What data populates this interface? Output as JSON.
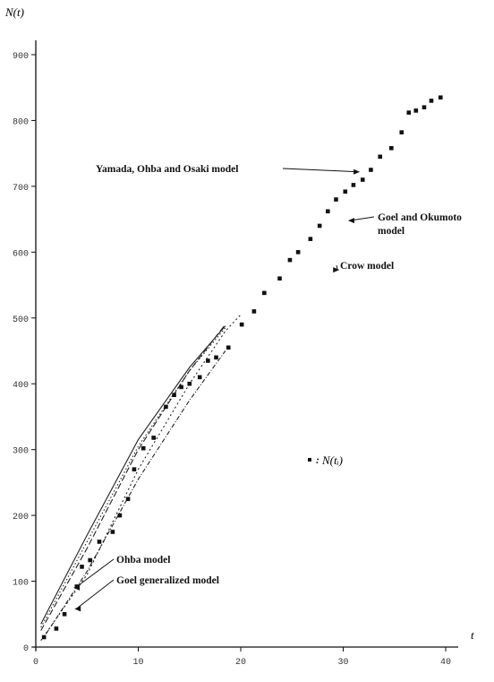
{
  "chart_data": {
    "type": "scatter",
    "title": "",
    "ylabel": "N(t)",
    "xlabel": "t",
    "xlim": [
      0,
      40
    ],
    "ylim": [
      0,
      900
    ],
    "xticks": [
      0,
      10,
      20,
      30,
      40
    ],
    "yticks": [
      0,
      100,
      200,
      300,
      400,
      500,
      600,
      700,
      800,
      900
    ],
    "grid": false,
    "observed": {
      "legend_label": "N(tᵢ)",
      "x": [
        0.8,
        2.0,
        2.8,
        4.0,
        4.5,
        5.3,
        6.2,
        7.5,
        8.2,
        9.0,
        9.6,
        10.5,
        11.5,
        12.7,
        13.5,
        14.2,
        15.0,
        16.0,
        16.8,
        17.6,
        18.8,
        20.1,
        21.3,
        22.3,
        23.8,
        24.8,
        25.6,
        26.8,
        27.7,
        28.5,
        29.3,
        30.2,
        31.0,
        31.9,
        32.7,
        33.6,
        34.7,
        35.7,
        36.4,
        37.1,
        37.9,
        38.6,
        39.5
      ],
      "y": [
        15,
        28,
        50,
        92,
        122,
        132,
        160,
        175,
        200,
        225,
        270,
        302,
        318,
        365,
        383,
        395,
        400,
        410,
        435,
        440,
        455,
        490,
        510,
        538,
        560,
        588,
        600,
        620,
        640,
        662,
        680,
        692,
        702,
        710,
        725,
        745,
        758,
        782,
        812,
        815,
        820,
        830,
        835
      ]
    },
    "models": [
      {
        "name": "Yamada, Ohba and Osaki model",
        "x": [
          0.5,
          5,
          10,
          15,
          18.5,
          20
        ],
        "y": [
          10,
          110,
          270,
          400,
          480,
          505
        ]
      },
      {
        "name": "Goel and Okumoto model",
        "x": [
          0.5,
          5,
          10,
          15,
          18.5
        ],
        "y": [
          25,
          150,
          300,
          420,
          490
        ]
      },
      {
        "name": "Crow model",
        "x": [
          0.5,
          5,
          10,
          15,
          18.5
        ],
        "y": [
          30,
          160,
          305,
          420,
          485
        ]
      },
      {
        "name": "Ohba model",
        "x": [
          0.5,
          5,
          10,
          15,
          18.5
        ],
        "y": [
          35,
          170,
          315,
          425,
          488
        ]
      },
      {
        "name": "Goel generalized model",
        "x": [
          1,
          5,
          10,
          15,
          18.5
        ],
        "y": [
          20,
          115,
          255,
          375,
          450
        ]
      }
    ],
    "annotations": [
      {
        "text": "Yamada, Ohba and Osaki model",
        "target": [
          31.8,
          722
        ]
      },
      {
        "text": "Goel and Okumoto",
        "text2": "model",
        "target": [
          30.3,
          648
        ]
      },
      {
        "text": "Crow model",
        "target": [
          29.8,
          573
        ]
      },
      {
        "text": "Ohba model",
        "target": [
          3.5,
          90
        ]
      },
      {
        "text": "Goel generalized model",
        "target": [
          3.6,
          58
        ]
      }
    ],
    "legend_position": "center-right"
  }
}
